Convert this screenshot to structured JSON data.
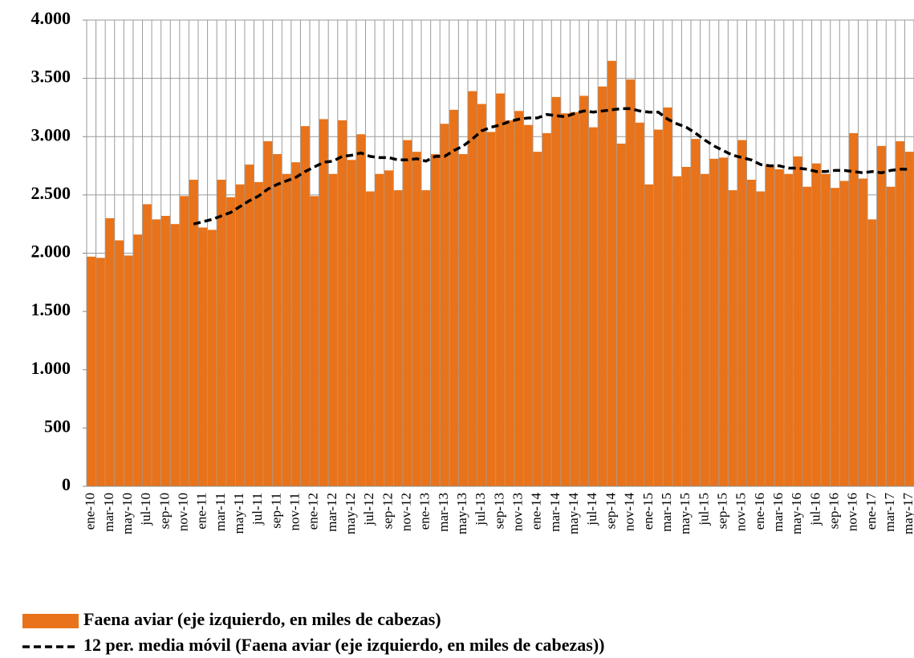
{
  "chart_data": {
    "type": "bar",
    "categories": [
      "ene-10",
      null,
      "mar-10",
      null,
      "may-10",
      null,
      "jul-10",
      null,
      "sep-10",
      null,
      "nov-10",
      null,
      "ene-11",
      null,
      "mar-11",
      null,
      "may-11",
      null,
      "jul-11",
      null,
      "sep-11",
      null,
      "nov-11",
      null,
      "ene-12",
      null,
      "mar-12",
      null,
      "may-12",
      null,
      "jul-12",
      null,
      "sep-12",
      null,
      "nov-12",
      null,
      "ene-13",
      null,
      "mar-13",
      null,
      "may-13",
      null,
      "jul-13",
      null,
      "sep-13",
      null,
      "nov-13",
      null,
      "ene-14",
      null,
      "mar-14",
      null,
      "may-14",
      null,
      "jul-14",
      null,
      "sep-14",
      null,
      "nov-14",
      null,
      "ene-15",
      null,
      "mar-15",
      null,
      "may-15",
      null,
      "jul-15",
      null,
      "sep-15",
      null,
      "nov-15",
      null,
      "ene-16",
      null,
      "mar-16",
      null,
      "may-16",
      null,
      "jul-16",
      null,
      "sep-16",
      null,
      "nov-16",
      null,
      "ene-17",
      null,
      "mar-17",
      null,
      "may-17"
    ],
    "series": [
      {
        "name": "Faena aviar (eje izquierdo, en miles de cabezas)",
        "type": "bar",
        "color": "#e8731a",
        "values": [
          1970,
          1960,
          2300,
          2110,
          1980,
          2160,
          2420,
          2290,
          2320,
          2250,
          2490,
          2630,
          2220,
          2200,
          2630,
          2480,
          2590,
          2760,
          2610,
          2960,
          2850,
          2680,
          2780,
          3090,
          2490,
          3150,
          2680,
          3140,
          2800,
          3020,
          2530,
          2680,
          2710,
          2540,
          2970,
          2870,
          2540,
          2850,
          3110,
          3230,
          2850,
          3390,
          3280,
          3040,
          3370,
          3140,
          3220,
          3100,
          2870,
          3030,
          3340,
          3200,
          3210,
          3350,
          3080,
          3430,
          3650,
          2940,
          3490,
          3120,
          2590,
          3060,
          3250,
          2660,
          2740,
          2980,
          2680,
          2810,
          2820,
          2540,
          2970,
          2630,
          2530,
          2760,
          2720,
          2680,
          2830,
          2570,
          2770,
          2680,
          2560,
          2620,
          3030,
          2640,
          2290,
          2920,
          2570,
          2960,
          2870
        ]
      },
      {
        "name": "12 per. media móvil (Faena aviar (eje izquierdo, en miles de cabezas))",
        "type": "line",
        "color": "#000000",
        "dashed": true,
        "values": [
          null,
          null,
          null,
          null,
          null,
          null,
          null,
          null,
          null,
          null,
          null,
          2250,
          2270,
          2290,
          2320,
          2350,
          2400,
          2450,
          2490,
          2550,
          2590,
          2620,
          2650,
          2700,
          2740,
          2780,
          2790,
          2830,
          2840,
          2860,
          2830,
          2820,
          2820,
          2800,
          2800,
          2810,
          2790,
          2830,
          2830,
          2880,
          2920,
          2980,
          3050,
          3080,
          3100,
          3130,
          3150,
          3160,
          3160,
          3190,
          3180,
          3170,
          3200,
          3220,
          3210,
          3220,
          3230,
          3240,
          3240,
          3220,
          3210,
          3210,
          3150,
          3110,
          3080,
          3030,
          2970,
          2920,
          2880,
          2840,
          2820,
          2800,
          2760,
          2750,
          2750,
          2730,
          2730,
          2720,
          2700,
          2700,
          2710,
          2710,
          2700,
          2690,
          2700,
          2690,
          2710,
          2720,
          2720
        ]
      }
    ],
    "ylim": [
      0,
      4000
    ],
    "yticks": [
      0,
      500,
      {
        "value": 1000,
        "label": "1.000"
      },
      {
        "value": 1500,
        "label": "1.500"
      },
      {
        "value": 2000,
        "label": "2.000"
      },
      {
        "value": 2500,
        "label": "2.500"
      },
      {
        "value": 3000,
        "label": "3.000"
      },
      {
        "value": 3500,
        "label": "3.500"
      },
      {
        "value": 4000,
        "label": "4.000"
      }
    ],
    "grid": true
  }
}
